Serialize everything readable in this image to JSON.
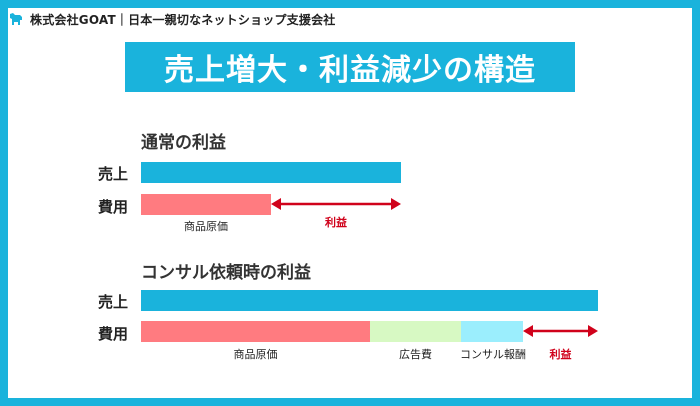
{
  "header": {
    "logo_icon": "dog-icon",
    "company_text": "株式会社GOAT｜日本一親切なネットショップ支援会社"
  },
  "title": "売上増大・利益減少の構造",
  "colors": {
    "accent": "#1ab3dc",
    "cost": "#ff7b80",
    "ad": "#d7f9c3",
    "consult": "#9beefd",
    "profit": "#d0021b"
  },
  "normal": {
    "title": "通常の利益",
    "sales_label": "売上",
    "cost_label": "費用",
    "goods_cost_label": "商品原価",
    "profit_label": "利益"
  },
  "consult": {
    "title": "コンサル依頼時の利益",
    "sales_label": "売上",
    "cost_label": "費用",
    "goods_cost_label": "商品原価",
    "ad_cost_label": "広告費",
    "consult_fee_label": "コンサル報酬",
    "profit_label": "利益"
  }
}
